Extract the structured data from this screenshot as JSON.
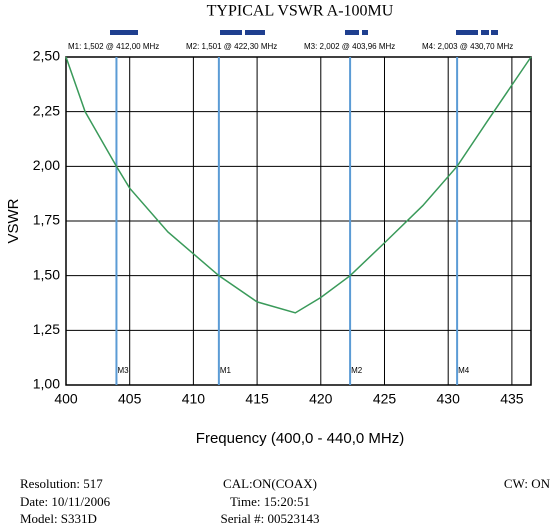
{
  "chart_data": {
    "type": "line",
    "title": "TYPICAL VSWR A-100MU",
    "x_label": "Frequency (400,0 - 440,0 MHz)",
    "y_label": "VSWR",
    "xlim": [
      400,
      436.5
    ],
    "ylim": [
      1.0,
      2.5
    ],
    "xticks": [
      400,
      405,
      410,
      415,
      420,
      425,
      430,
      435
    ],
    "yticks": [
      {
        "value": 1.0,
        "label": "1,00"
      },
      {
        "value": 1.25,
        "label": "1,25"
      },
      {
        "value": 1.5,
        "label": "1,50"
      },
      {
        "value": 1.75,
        "label": "1,75"
      },
      {
        "value": 2.0,
        "label": "2,00"
      },
      {
        "value": 2.25,
        "label": "2,25"
      },
      {
        "value": 2.5,
        "label": "2,50"
      }
    ],
    "grid": true,
    "series": [
      {
        "color": "#3a9a5a",
        "x": [
          400,
          401.5,
          403.96,
          405,
          408,
          410,
          412,
          415,
          418,
          420,
          422.3,
          425,
          428,
          430.7,
          433,
          436.5
        ],
        "values": [
          2.5,
          2.25,
          2.0,
          1.9,
          1.7,
          1.6,
          1.5,
          1.38,
          1.33,
          1.4,
          1.5,
          1.65,
          1.82,
          2.0,
          2.2,
          2.5
        ]
      }
    ],
    "markers": [
      {
        "name": "M1",
        "label": "M1: 1,502 @ 412,00 MHz",
        "x": 412.0,
        "value": 1.502
      },
      {
        "name": "M2",
        "label": "M2: 1,501 @ 422,30 MHz",
        "x": 422.3,
        "value": 1.501
      },
      {
        "name": "M3",
        "label": "M3: 2,002 @ 403,96 MHz",
        "x": 403.96,
        "value": 2.002
      },
      {
        "name": "M4",
        "label": "M4: 2,003 @ 430,70 MHz",
        "x": 430.7,
        "value": 2.003
      }
    ],
    "marker_color": "#5b9bd5"
  },
  "footer": {
    "resolution": "Resolution:  517",
    "date": "Date: 10/11/2006",
    "model": "Model: S331D",
    "cal": "CAL:ON(COAX)",
    "time": "Time: 15:20:51",
    "serial": "Serial #: 00523143",
    "cw": "CW: ON"
  }
}
